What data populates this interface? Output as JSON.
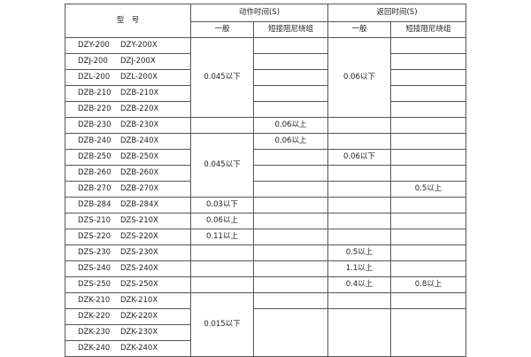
{
  "header": {
    "model": "型　号",
    "action_time": "动作时间(S)",
    "return_time": "返回时间(S)",
    "general": "一般",
    "short_winding": "短接阻尼绕组"
  },
  "rows": [
    {
      "models": [
        "DZY-200",
        "DZY-200X"
      ],
      "values": [
        "0.045以下",
        "",
        "0.06以下",
        ""
      ]
    },
    {
      "models": [
        "DZJ-200",
        "DZJ-200X"
      ],
      "values": [
        null,
        "",
        null,
        ""
      ]
    },
    {
      "models": [
        "DZL-200",
        "DZL-200X"
      ],
      "values": [
        null,
        "",
        null,
        ""
      ]
    },
    {
      "models": [
        "DZB-210",
        "DZB-210X"
      ],
      "values": [
        null,
        "",
        null,
        ""
      ]
    },
    {
      "models": [
        "DZB-220",
        "DZB-220X"
      ],
      "values": [
        null,
        "",
        null,
        ""
      ]
    },
    {
      "models": [
        "DZB-230",
        "DZB-230X"
      ],
      "values": [
        "",
        "0.06以上",
        "",
        ""
      ]
    },
    {
      "models": [
        "DZB-240",
        "DZB-240X"
      ],
      "values": [
        "0.045以下",
        "0.06以上",
        "",
        ""
      ]
    },
    {
      "models": [
        "DZB-250",
        "DZB-250X"
      ],
      "values": [
        null,
        "",
        "0.06以下",
        ""
      ]
    },
    {
      "models": [
        "DZB-260",
        "DZB-260X"
      ],
      "values": [
        null,
        "",
        "",
        ""
      ]
    },
    {
      "models": [
        "DZB-270",
        "DZB-270X"
      ],
      "values": [
        null,
        "",
        "",
        "0.5以上"
      ]
    },
    {
      "models": [
        "DZB-284",
        "DZB-284X"
      ],
      "values": [
        "0.03以下",
        "",
        "",
        ""
      ]
    },
    {
      "models": [
        "DZS-210",
        "DZS-210X"
      ],
      "values": [
        "0.06以上",
        "",
        "",
        ""
      ]
    },
    {
      "models": [
        "DZS-220",
        "DZS-220X"
      ],
      "values": [
        "0.11以上",
        "",
        "",
        ""
      ]
    },
    {
      "models": [
        "DZS-230",
        "DZS-230X"
      ],
      "values": [
        "",
        "",
        "0.5以上",
        ""
      ]
    },
    {
      "models": [
        "DZS-240",
        "DZS-240X"
      ],
      "values": [
        "",
        "",
        "1.1以上",
        ""
      ]
    },
    {
      "models": [
        "DZS-250",
        "DZS-250X"
      ],
      "values": [
        "",
        "",
        "0.4以上",
        "0.8以上"
      ]
    },
    {
      "models": [
        "DZK-210",
        "DZK-210X"
      ],
      "values": [
        "0.015以下",
        "",
        "",
        ""
      ]
    },
    {
      "models": [
        "DZK-220",
        "DZK-220X"
      ],
      "values": [
        null,
        "",
        "",
        ""
      ]
    },
    {
      "models": [
        "DZK-230",
        "DZK-230X"
      ],
      "values": [
        null,
        null,
        null,
        null
      ]
    },
    {
      "models": [
        "DZK-240",
        "DZK-240X"
      ],
      "values": [
        null,
        null,
        null,
        null
      ]
    }
  ]
}
